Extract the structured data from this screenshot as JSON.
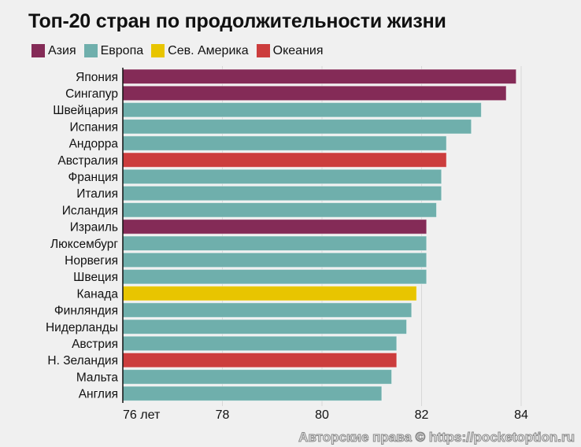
{
  "chart_data": {
    "type": "bar",
    "orientation": "horizontal",
    "title": "Топ-20 стран по продолжительности жизни",
    "legend": [
      {
        "name": "Азия",
        "color": "#842b57"
      },
      {
        "name": "Европа",
        "color": "#6fafac"
      },
      {
        "name": "Сев. Америка",
        "color": "#e8c500"
      },
      {
        "name": "Океания",
        "color": "#cc3d3d"
      }
    ],
    "legend_placement": "top-left",
    "categories": [
      "Япония",
      "Сингапур",
      "Швейцария",
      "Испания",
      "Андорра",
      "Австралия",
      "Франция",
      "Италия",
      "Исландия",
      "Израиль",
      "Люксембург",
      "Норвегия",
      "Швеция",
      "Канада",
      "Финляндия",
      "Нидерланды",
      "Австрия",
      "Н. Зеландия",
      "Мальта",
      "Англия"
    ],
    "regions": [
      "Азия",
      "Азия",
      "Европа",
      "Европа",
      "Европа",
      "Океания",
      "Европа",
      "Европа",
      "Европа",
      "Азия",
      "Европа",
      "Европа",
      "Европа",
      "Сев. Америка",
      "Европа",
      "Европа",
      "Европа",
      "Океания",
      "Европа",
      "Европа"
    ],
    "values": [
      83.9,
      83.7,
      83.2,
      83.0,
      82.5,
      82.5,
      82.4,
      82.4,
      82.3,
      82.1,
      82.1,
      82.1,
      82.1,
      81.9,
      81.8,
      81.7,
      81.5,
      81.5,
      81.4,
      81.2
    ],
    "xlim": [
      76,
      85
    ],
    "xticks": [
      76,
      78,
      80,
      82,
      84
    ],
    "xtick_labels": [
      "76 лет",
      "78",
      "80",
      "82",
      "84"
    ],
    "grid": "vertical"
  },
  "watermark": "Авторские права © https://pocketoption.ru"
}
